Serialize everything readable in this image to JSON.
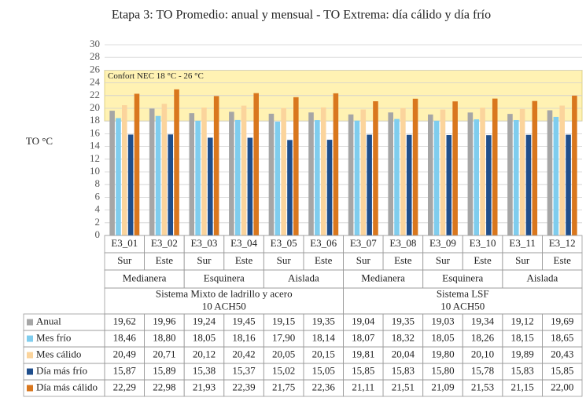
{
  "chart_data": {
    "type": "bar",
    "title": "Etapa 3: TO Promedio: anual y mensual - TO Extrema: día cálido y día frío",
    "y_label": "TO °C",
    "categories": [
      "E3_01",
      "E3_02",
      "E3_03",
      "E3_04",
      "E3_05",
      "E3_06",
      "E3_07",
      "E3_08",
      "E3_09",
      "E3_10",
      "E3_11",
      "E3_12"
    ],
    "orientation": [
      "Sur",
      "Este",
      "Sur",
      "Este",
      "Sur",
      "Este",
      "Sur",
      "Este",
      "Sur",
      "Este",
      "Sur",
      "Este"
    ],
    "groups": [
      "Medianera",
      "Esquinera",
      "Aislada",
      "Medianera",
      "Esquinera",
      "Aislada"
    ],
    "systems": [
      {
        "name": "Sistema Mixto de ladrillo y acero",
        "detail": "10 ACH50"
      },
      {
        "name": "Sistema LSF",
        "detail": "10 ACH50"
      }
    ],
    "comfort_zone": {
      "label": "Confort NEC 18 °C - 26 °C",
      "range": [
        18,
        26
      ],
      "color": "#fff2b3"
    },
    "ylim": [
      0,
      30
    ],
    "yticks": [
      0,
      2,
      4,
      6,
      8,
      10,
      12,
      14,
      16,
      18,
      20,
      22,
      24,
      26,
      28,
      30
    ],
    "grid": true,
    "series": [
      {
        "name": "Anual",
        "color": "#a6a6a6",
        "values": [
          19.62,
          19.96,
          19.24,
          19.45,
          19.15,
          19.35,
          19.04,
          19.35,
          19.03,
          19.34,
          19.12,
          19.69
        ],
        "value_labels": [
          "19,62",
          "19,96",
          "19,24",
          "19,45",
          "19,15",
          "19,35",
          "19,04",
          "19,35",
          "19,03",
          "19,34",
          "19,12",
          "19,69"
        ]
      },
      {
        "name": "Mes frío",
        "color": "#7fcdee",
        "values": [
          18.46,
          18.8,
          18.05,
          18.16,
          17.9,
          18.14,
          18.07,
          18.32,
          18.05,
          18.26,
          18.15,
          18.65
        ],
        "value_labels": [
          "18,46",
          "18,80",
          "18,05",
          "18,16",
          "17,90",
          "18,14",
          "18,07",
          "18,32",
          "18,05",
          "18,26",
          "18,15",
          "18,65"
        ]
      },
      {
        "name": "Mes cálido",
        "color": "#fbd49c",
        "values": [
          20.49,
          20.71,
          20.12,
          20.42,
          20.05,
          20.15,
          19.81,
          20.04,
          19.8,
          20.1,
          19.89,
          20.43
        ],
        "value_labels": [
          "20,49",
          "20,71",
          "20,12",
          "20,42",
          "20,05",
          "20,15",
          "19,81",
          "20,04",
          "19,80",
          "20,10",
          "19,89",
          "20,43"
        ]
      },
      {
        "name": "Día más frío",
        "color": "#1f4e8c",
        "values": [
          15.87,
          15.89,
          15.38,
          15.37,
          15.02,
          15.05,
          15.85,
          15.83,
          15.8,
          15.78,
          15.83,
          15.85
        ],
        "value_labels": [
          "15,87",
          "15,89",
          "15,38",
          "15,37",
          "15,02",
          "15,05",
          "15,85",
          "15,83",
          "15,80",
          "15,78",
          "15,83",
          "15,85"
        ]
      },
      {
        "name": "Día más cálido",
        "color": "#d9771e",
        "values": [
          22.29,
          22.98,
          21.93,
          22.39,
          21.75,
          22.36,
          21.11,
          21.51,
          21.09,
          21.53,
          21.15,
          22.0
        ],
        "value_labels": [
          "22,29",
          "22,98",
          "21,93",
          "22,39",
          "21,75",
          "22,36",
          "21,11",
          "21,51",
          "21,09",
          "21,53",
          "21,15",
          "22,00"
        ]
      }
    ]
  }
}
